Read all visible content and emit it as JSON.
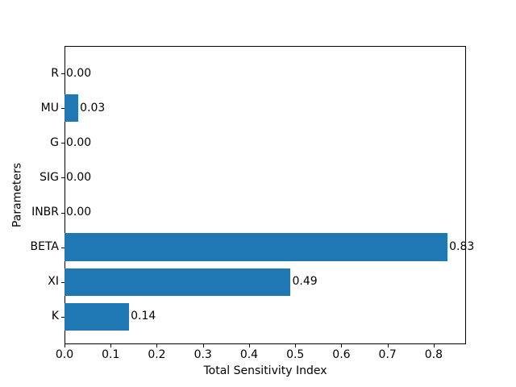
{
  "figure": {
    "background": "#ffffff",
    "text_color": "#000000"
  },
  "chart_data": {
    "type": "bar",
    "orientation": "horizontal",
    "title": "",
    "xlabel": "Total Sensitivity Index",
    "ylabel": "Parameters",
    "categories": [
      "R",
      "MU",
      "G",
      "SIG",
      "INBR",
      "BETA",
      "XI",
      "K"
    ],
    "values": [
      0.0,
      0.03,
      0.0,
      0.0,
      0.0,
      0.83,
      0.49,
      0.14
    ],
    "value_labels": [
      "0.00",
      "0.03",
      "0.00",
      "0.00",
      "0.00",
      "0.83",
      "0.49",
      "0.14"
    ],
    "xlim": [
      0,
      0.87
    ],
    "xticks": [
      0.0,
      0.1,
      0.2,
      0.3,
      0.4,
      0.5,
      0.6,
      0.7,
      0.8
    ],
    "xtick_labels": [
      "0.0",
      "0.1",
      "0.2",
      "0.3",
      "0.4",
      "0.5",
      "0.6",
      "0.7",
      "0.8"
    ],
    "bar_color": "#1f77b4",
    "grid": false,
    "legend": false
  }
}
